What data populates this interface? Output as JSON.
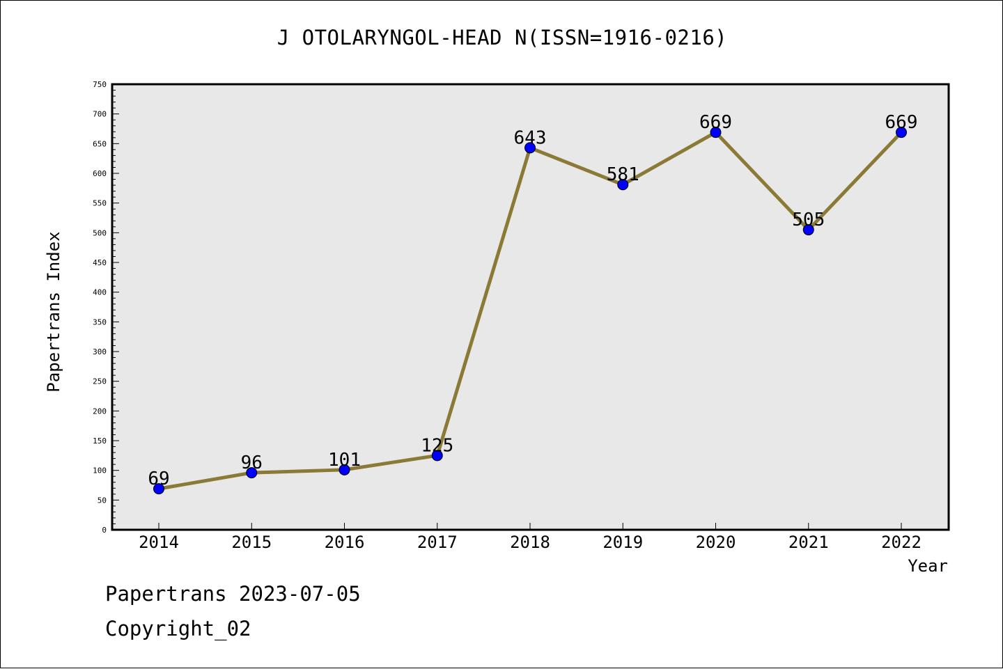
{
  "chart_data": {
    "type": "line",
    "title": "J OTOLARYNGOL-HEAD N(ISSN=1916-0216)",
    "xlabel": "Year",
    "ylabel": "Papertrans Index",
    "categories": [
      "2014",
      "2015",
      "2016",
      "2017",
      "2018",
      "2019",
      "2020",
      "2021",
      "2022"
    ],
    "values": [
      69,
      96,
      101,
      125,
      643,
      581,
      669,
      505,
      669
    ],
    "data_labels": [
      "69",
      "96",
      "101",
      "125",
      "643",
      "581",
      "669",
      "505",
      "669"
    ],
    "ylim": [
      0,
      750
    ],
    "yticks": [
      0,
      50,
      100,
      150,
      200,
      250,
      300,
      350,
      400,
      450,
      500,
      550,
      600,
      650,
      700,
      750
    ],
    "grid": false,
    "colors": {
      "line": "#8b7a35",
      "marker": "#0000ff",
      "plot_bg": "#e8e8e8"
    }
  },
  "footer": {
    "date_text": "Papertrans 2023-07-05",
    "copyright_text": "Copyright_02"
  }
}
